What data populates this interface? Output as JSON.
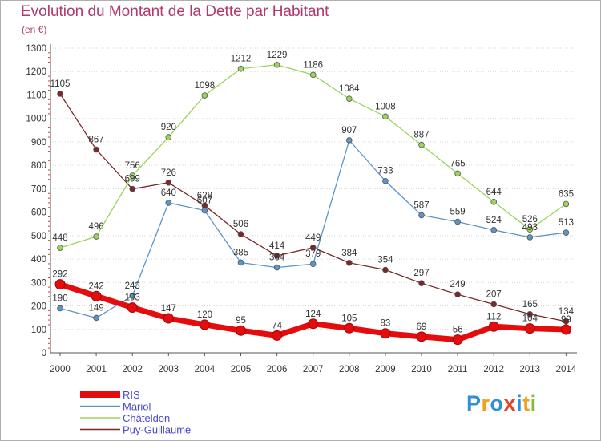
{
  "header": {
    "title": "Evolution du Montant de la Dette par Habitant",
    "unit": "(en €)"
  },
  "logo": {
    "letters": [
      {
        "ch": "P",
        "color": "#2f8fd8"
      },
      {
        "ch": "r",
        "color": "#f0a020"
      },
      {
        "ch": "o",
        "color": "#2f8fd8"
      },
      {
        "ch": "x",
        "color": "#e8402a"
      },
      {
        "ch": "i",
        "color": "#2f8fd8"
      },
      {
        "ch": "t",
        "color": "#f0a020"
      },
      {
        "ch": "i",
        "color": "#7cbd3c"
      }
    ]
  },
  "chart_data": {
    "type": "line",
    "x": [
      "2000",
      "2001",
      "2002",
      "2003",
      "2004",
      "2005",
      "2006",
      "2007",
      "2008",
      "2009",
      "2010",
      "2011",
      "2012",
      "2013",
      "2014"
    ],
    "ylim": [
      0,
      1300
    ],
    "yticks": [
      0,
      100,
      200,
      300,
      400,
      500,
      600,
      700,
      800,
      900,
      1000,
      1100,
      1200,
      1300
    ],
    "grid": true,
    "legend_position": "bottom-left",
    "series": [
      {
        "name": "RIS",
        "color": "#e40c0c",
        "values": [
          292,
          242,
          193,
          147,
          120,
          95,
          74,
          124,
          105,
          83,
          69,
          56,
          112,
          104,
          99
        ]
      },
      {
        "name": "Mariol",
        "color": "#5b95c9",
        "values": [
          190,
          149,
          243,
          640,
          607,
          385,
          364,
          379,
          907,
          733,
          587,
          559,
          524,
          493,
          513
        ]
      },
      {
        "name": "Châteldon",
        "color": "#9ad45a",
        "values": [
          448,
          496,
          756,
          920,
          1098,
          1212,
          1229,
          1186,
          1084,
          1008,
          887,
          765,
          644,
          526,
          635
        ]
      },
      {
        "name": "Puy-Guillaume",
        "color": "#7a2828",
        "values": [
          1105,
          867,
          699,
          726,
          628,
          506,
          414,
          449,
          384,
          354,
          297,
          249,
          207,
          165,
          134
        ]
      }
    ]
  }
}
